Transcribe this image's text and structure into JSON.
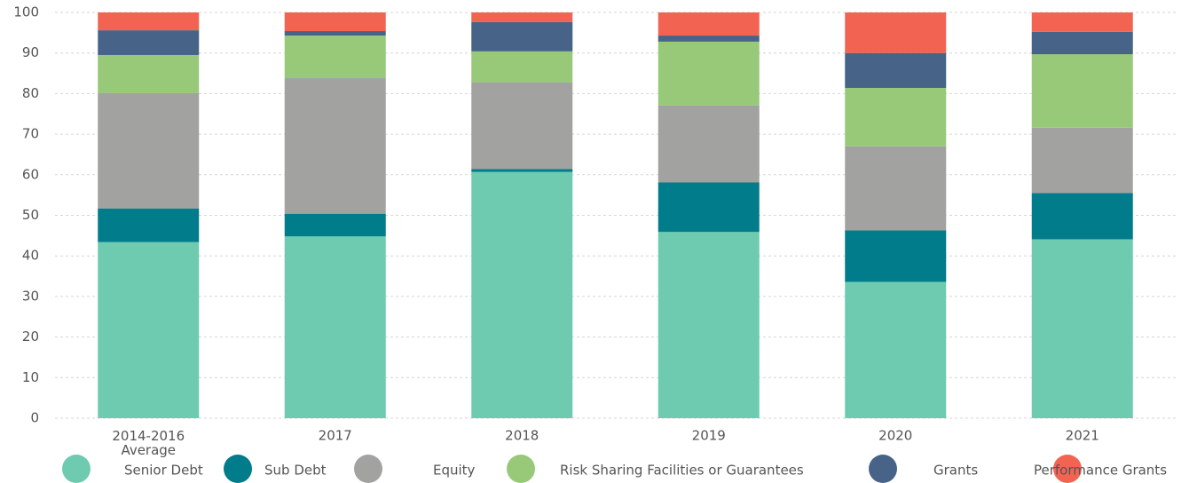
{
  "chart_data": {
    "type": "stacked_bar",
    "categories": [
      "2014-2016\nAverage",
      "2017",
      "2018",
      "2019",
      "2020",
      "2021"
    ],
    "series": [
      {
        "name": "Senior Debt",
        "color": "#6ecbb0",
        "values": [
          43.4,
          44.8,
          60.7,
          45.9,
          33.6,
          44.1
        ]
      },
      {
        "name": "Sub Debt",
        "color": "#007c8a",
        "values": [
          8.3,
          5.6,
          0.7,
          12.2,
          12.7,
          11.4
        ]
      },
      {
        "name": "Equity",
        "color": "#a2a2a0",
        "values": [
          28.4,
          33.4,
          21.4,
          19.0,
          20.7,
          16.1
        ]
      },
      {
        "name": "Risk Sharing Facilities or Guarantees",
        "color": "#98c979",
        "values": [
          9.4,
          10.5,
          7.6,
          15.7,
          14.4,
          18.1
        ]
      },
      {
        "name": "Grants",
        "color": "#476488",
        "values": [
          6.1,
          1.1,
          7.2,
          1.5,
          8.6,
          5.5
        ]
      },
      {
        "name": "Performance Grants",
        "color": "#f26451",
        "values": [
          4.4,
          4.6,
          2.4,
          5.7,
          10.0,
          4.8
        ]
      }
    ],
    "ylim": [
      0,
      100
    ],
    "yticks": [
      0,
      10,
      20,
      30,
      40,
      50,
      60,
      70,
      80,
      90,
      100
    ],
    "grid": true,
    "legend": "bottom"
  }
}
